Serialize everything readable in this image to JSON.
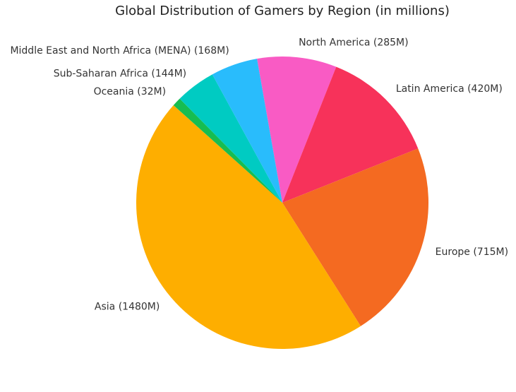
{
  "chart_data": {
    "type": "pie",
    "title": "Global Distribution of Gamers by Region (in millions)",
    "slices": [
      {
        "label": "North America (285M)",
        "value": 285,
        "color": "#f95bc4"
      },
      {
        "label": "Latin America (420M)",
        "value": 420,
        "color": "#f7325a"
      },
      {
        "label": "Europe (715M)",
        "value": 715,
        "color": "#f46a21"
      },
      {
        "label": "Asia (1480M)",
        "value": 1480,
        "color": "#feae00"
      },
      {
        "label": "Oceania (32M)",
        "value": 32,
        "color": "#17bd51"
      },
      {
        "label": "Sub-Saharan Africa (144M)",
        "value": 144,
        "color": "#00cbc2"
      },
      {
        "label": "Middle East and North Africa (MENA) (168M)",
        "value": 168,
        "color": "#29bcfc"
      }
    ],
    "start_angle_deg": 100,
    "direction": "clockwise",
    "legend": "none"
  }
}
